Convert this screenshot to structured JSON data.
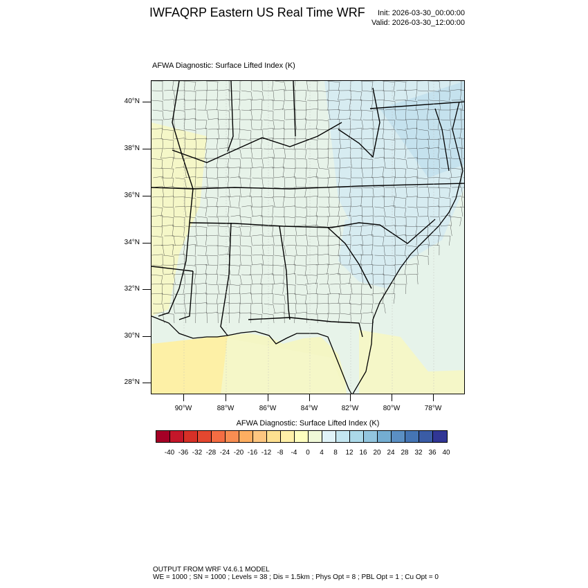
{
  "header": {
    "title": "IWFAQRP Eastern US Real Time WRF",
    "init": "Init: 2026-03-30_00:00:00",
    "valid": "Valid: 2026-03-30_12:00:00"
  },
  "panel": {
    "label": "AFWA Diagnostic: Surface Lifted Index   (K)"
  },
  "axes": {
    "lat_labels": [
      "40°N",
      "38°N",
      "36°N",
      "34°N",
      "32°N",
      "30°N",
      "28°N"
    ],
    "lon_labels": [
      "90°W",
      "88°W",
      "86°W",
      "84°W",
      "82°W",
      "80°W",
      "78°W"
    ]
  },
  "colorbar": {
    "title": "AFWA Diagnostic: Surface Lifted Index  (K)",
    "labels": [
      "-40",
      "-36",
      "-32",
      "-28",
      "-24",
      "-20",
      "-16",
      "-12",
      "-8",
      "-4",
      "0",
      "4",
      "8",
      "12",
      "16",
      "20",
      "24",
      "28",
      "32",
      "36",
      "40"
    ],
    "colors": [
      "#a50026",
      "#c4172a",
      "#d73027",
      "#e4472f",
      "#f46d43",
      "#f88d52",
      "#fdae61",
      "#fec680",
      "#fee090",
      "#fff0a8",
      "#ffffbf",
      "#f0f9d8",
      "#e0f3f8",
      "#c4e6f0",
      "#abd9e9",
      "#92c5de",
      "#74add1",
      "#5b8fc3",
      "#4575b4",
      "#3a5ca6",
      "#313695"
    ]
  },
  "map_colors": {
    "land_base": "#e7f3e9",
    "warm": "#f5f7c8",
    "warmer": "#fdf0a6",
    "cool": "#d7ecf1",
    "cooler": "#c5e2ee",
    "ocean": "#e6f3ea",
    "ocean_warm": "#f4f6c4"
  },
  "footer": {
    "line1": "OUTPUT FROM WRF V4.6.1 MODEL",
    "line2": "WE = 1000 ; SN = 1000 ; Levels = 38 ; Dis = 1.5km ; Phys Opt = 8 ; PBL Opt = 1 ; Cu Opt = 0"
  }
}
